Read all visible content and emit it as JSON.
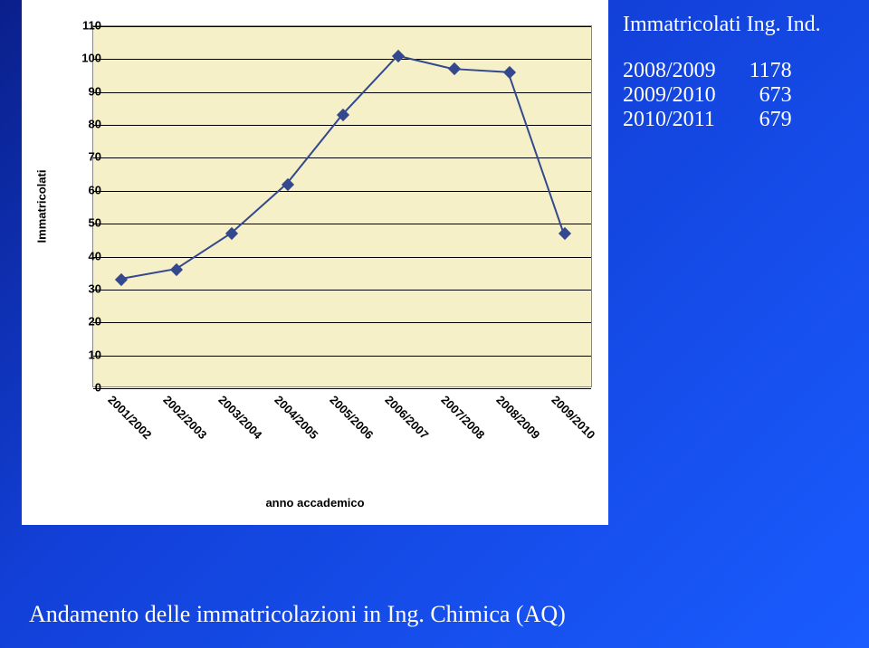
{
  "sidebar": {
    "title": "Immatricolati Ing. Ind.",
    "rows": [
      {
        "year": "2008/2009",
        "value": "1178"
      },
      {
        "year": "2009/2010",
        "value": "673"
      },
      {
        "year": "2010/2011",
        "value": "679"
      }
    ]
  },
  "caption": "Andamento delle immatricolazioni in Ing. Chimica (AQ)",
  "chart": {
    "type": "line",
    "y_axis_title": "Immatricolati",
    "x_axis_title": "anno accademico",
    "plot_bg_color": "#f5f0c8",
    "grid_color": "#000000",
    "border_color": "#888888",
    "marker_color": "#34488e",
    "marker_style": "diamond",
    "marker_size": 10,
    "line_color": "#34488e",
    "line_width": 2,
    "tick_font_family": "Arial",
    "tick_font_size": 13,
    "tick_font_weight": "bold",
    "ylim": [
      0,
      110
    ],
    "ytick_step": 10,
    "y_ticks": [
      0,
      10,
      20,
      30,
      40,
      50,
      60,
      70,
      80,
      90,
      100,
      110
    ],
    "categories": [
      "2001/2002",
      "2002/2003",
      "2003/2004",
      "2004/2005",
      "2005/2006",
      "2006/2007",
      "2007/2008",
      "2008/2009",
      "2009/2010"
    ],
    "values": [
      33,
      36,
      47,
      62,
      83,
      101,
      97,
      96,
      47
    ]
  }
}
